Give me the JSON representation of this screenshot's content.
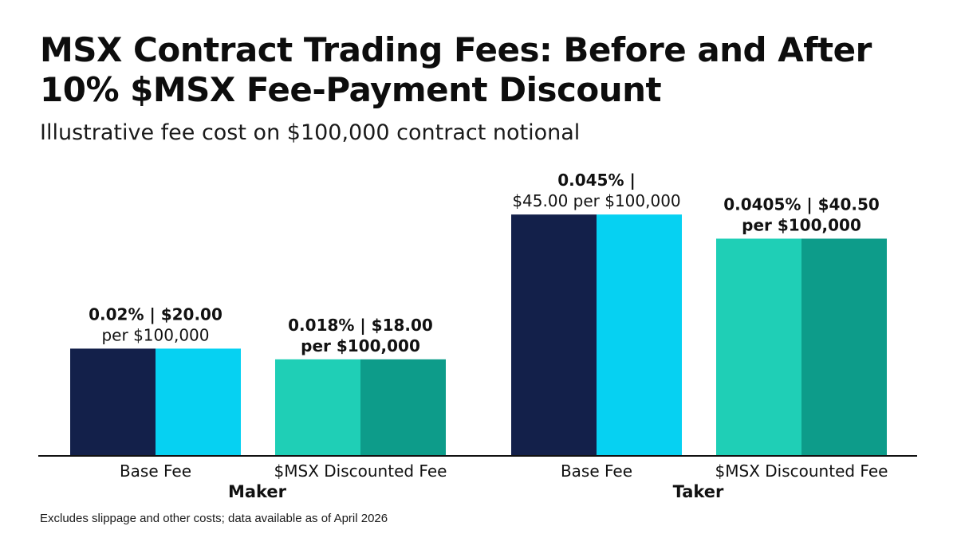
{
  "title_line1": "MSX Contract Trading Fees: Before and After",
  "title_line2": "10% $MSX Fee-Payment Discount",
  "subtitle": "Illustrative fee cost on $100,000 contract notional",
  "footnote": "Excludes slippage and other costs; data available as of April 2026",
  "colors": {
    "base_dark": "#13204a",
    "base_light": "#06d1f2",
    "disc_light": "#1fcfb6",
    "disc_dark": "#0d9c8a",
    "axis": "#111111"
  },
  "chart_data": {
    "type": "bar",
    "title": "MSX Contract Trading Fees: Before and After 10% $MSX Fee-Payment Discount",
    "subtitle": "Illustrative fee cost on $100,000 contract notional",
    "xlabel": "",
    "ylabel": "",
    "grid": false,
    "legend": "none",
    "ylim": [
      0,
      50
    ],
    "groups": [
      "Maker",
      "Taker"
    ],
    "categories": [
      "Base Fee",
      "$MSX Discounted Fee",
      "Base Fee",
      "$MSX Discounted Fee"
    ],
    "bars": [
      {
        "group": "Maker",
        "category": "Base Fee",
        "value": 20.0,
        "label_line1": "0.02% | $20.00",
        "label_line2": "per $100,000",
        "style": "base"
      },
      {
        "group": "Maker",
        "category": "$MSX Discounted Fee",
        "value": 18.0,
        "label_line1": "0.018% | $18.00",
        "label_line2": "per $100,000",
        "style": "discounted"
      },
      {
        "group": "Taker",
        "category": "Base Fee",
        "value": 45.0,
        "label_line1": "0.045% |",
        "label_line2": "$45.00 per $100,000",
        "style": "base"
      },
      {
        "group": "Taker",
        "category": "$MSX Discounted Fee",
        "value": 40.5,
        "label_line1": "0.0405% | $40.50",
        "label_line2": "per $100,000",
        "style": "discounted"
      }
    ]
  }
}
